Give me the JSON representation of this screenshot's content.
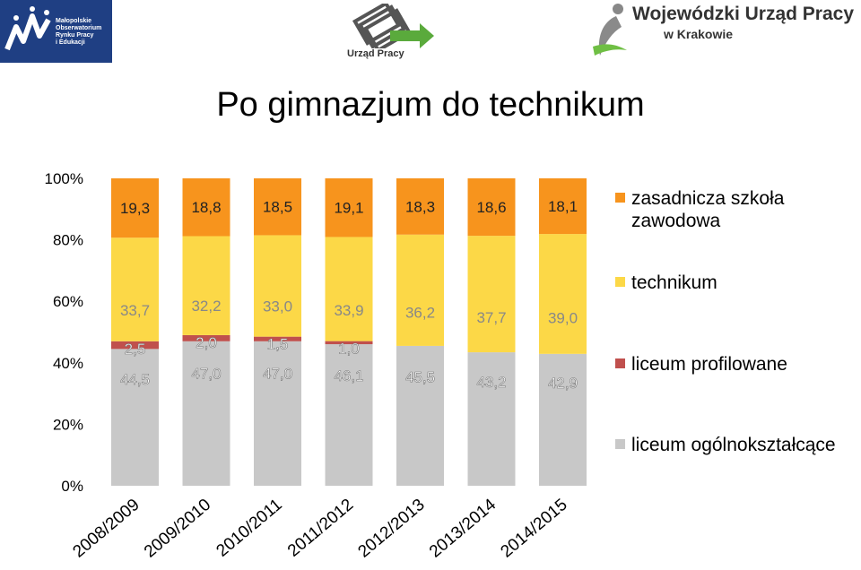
{
  "header": {
    "logo_left_text": "Małopolskie\nObserwatorium\nRynku Pracy\ni Edukacji",
    "logo_mid_text": "Urząd Pracy",
    "logo_right_line1": "Wojewódzki Urząd Pracy",
    "logo_right_line2": "w Krakowie"
  },
  "chart_data": {
    "type": "bar",
    "stacked": true,
    "percent": true,
    "title": "Po gimnazjum do technikum",
    "categories": [
      "2008/2009",
      "2009/2010",
      "2010/2011",
      "2011/2012",
      "2012/2013",
      "2013/2014",
      "2014/2015"
    ],
    "y_ticks": [
      "0%",
      "20%",
      "40%",
      "60%",
      "80%",
      "100%"
    ],
    "ylim": [
      0,
      100
    ],
    "legend_position": "right",
    "series": [
      {
        "name": "liceum ogólnokształcące",
        "color": "#c8c8c8",
        "values": [
          44.5,
          47.0,
          47.0,
          46.1,
          45.5,
          43.2,
          42.9
        ],
        "labels": [
          "44,5",
          "47,0",
          "47,0",
          "46,1",
          "45,5",
          "43,2",
          "42,9"
        ]
      },
      {
        "name": "liceum profilowane",
        "color": "#c0504d",
        "values": [
          2.5,
          2.0,
          1.5,
          1.0,
          null,
          null,
          null
        ],
        "labels": [
          "2,5",
          "2,0",
          "1,5",
          "1,0",
          null,
          null,
          null
        ]
      },
      {
        "name": "technikum",
        "color": "#fcd847",
        "values": [
          33.7,
          32.2,
          33.0,
          33.9,
          36.2,
          37.7,
          39.0
        ],
        "labels": [
          "33,7",
          "32,2",
          "33,0",
          "33,9",
          "36,2",
          "37,7",
          "39,0"
        ]
      },
      {
        "name": "zasadnicza szkoła\nzawodowa",
        "color": "#f7941d",
        "values": [
          19.3,
          18.8,
          18.5,
          19.1,
          18.3,
          18.6,
          18.1
        ],
        "labels": [
          "19,3",
          "18,8",
          "18,5",
          "19,1",
          "18,3",
          "18,6",
          "18,1"
        ]
      }
    ],
    "legend_order": [
      3,
      2,
      1,
      0
    ]
  }
}
